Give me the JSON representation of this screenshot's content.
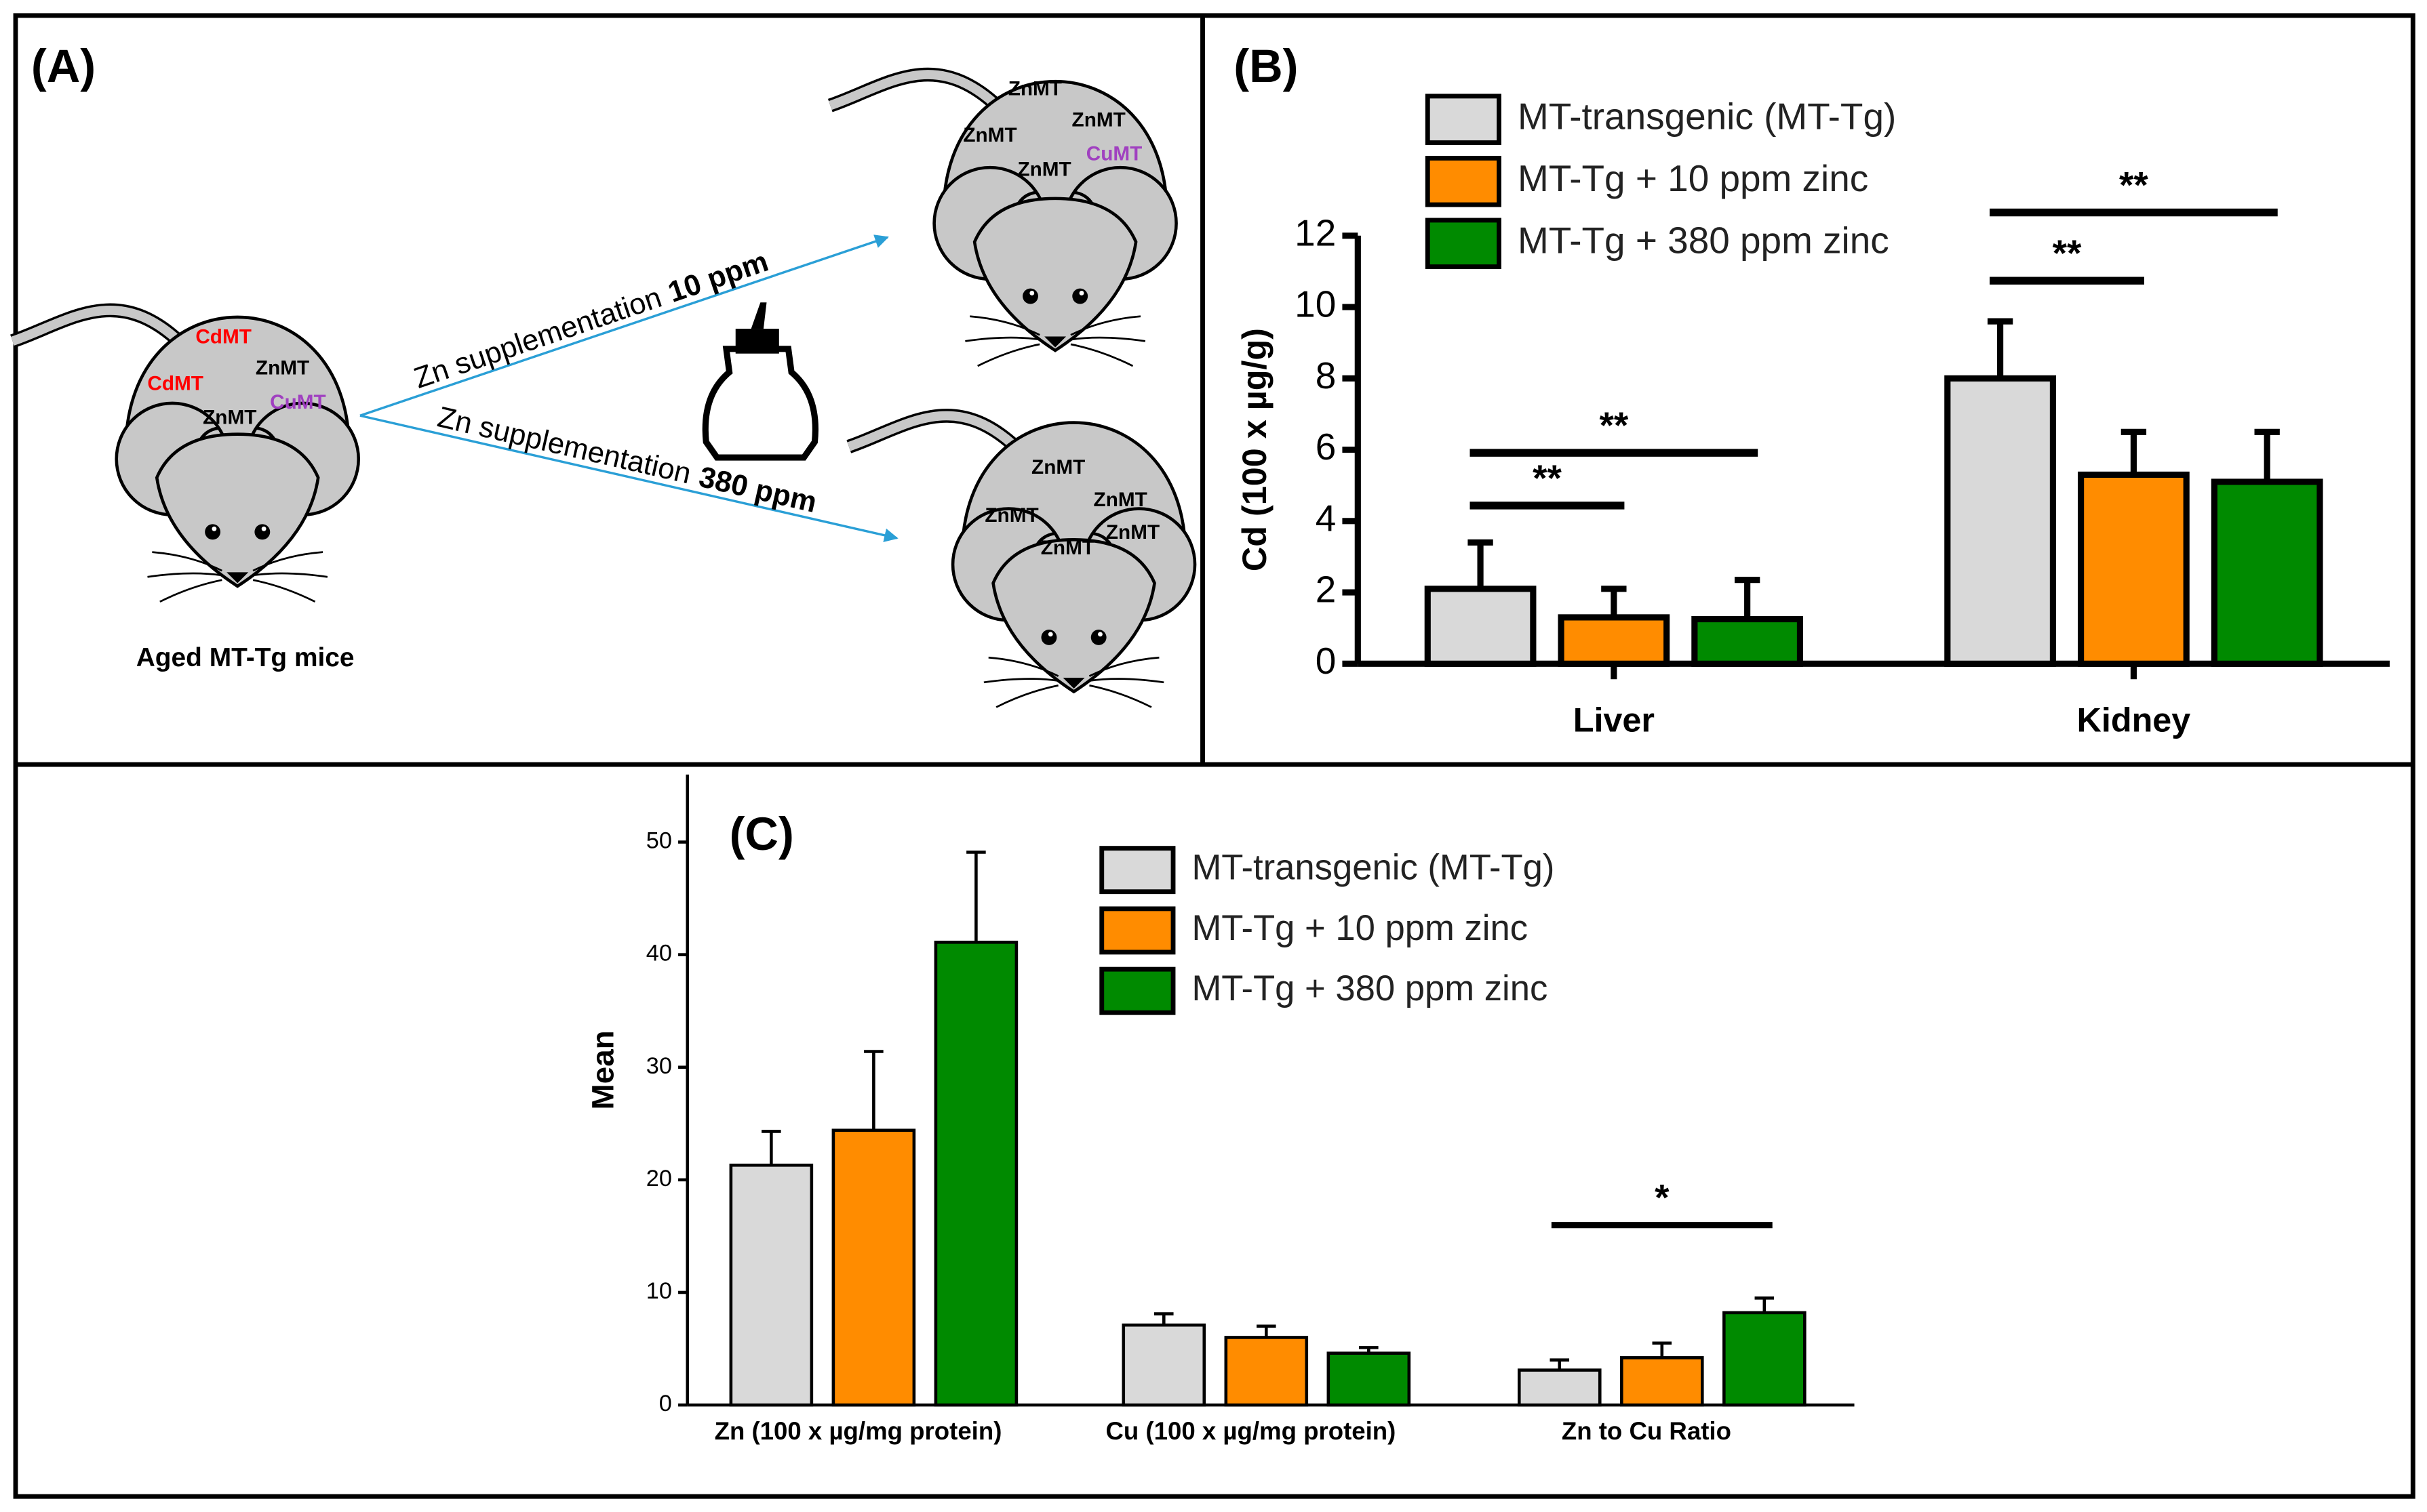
{
  "panel_a": {
    "label": "(A)",
    "mice": [
      {
        "labels": [
          {
            "text": "CdMT",
            "color": "#ff0000"
          },
          {
            "text": "CdMT",
            "color": "#ff0000"
          },
          {
            "text": "ZnMT",
            "color": "#000000"
          },
          {
            "text": "ZnMT",
            "color": "#000000"
          },
          {
            "text": "CuMT",
            "color": "#a040c0"
          }
        ],
        "caption": "Aged MT-Tg mice"
      },
      {
        "labels": [
          {
            "text": "ZnMT",
            "color": "#000000"
          },
          {
            "text": "ZnMT",
            "color": "#000000"
          },
          {
            "text": "ZnMT",
            "color": "#000000"
          },
          {
            "text": "CuMT",
            "color": "#a040c0"
          },
          {
            "text": "ZnMT",
            "color": "#000000"
          }
        ]
      },
      {
        "labels": [
          {
            "text": "ZnMT",
            "color": "#000000"
          },
          {
            "text": "ZnMT",
            "color": "#000000"
          },
          {
            "text": "ZnMT",
            "color": "#000000"
          },
          {
            "text": "ZnMT",
            "color": "#000000"
          },
          {
            "text": "ZnMT",
            "color": "#000000"
          }
        ]
      }
    ],
    "arrows": [
      {
        "text": "Zn supplementation",
        "dose": "10 ppm"
      },
      {
        "text": "Zn supplementation",
        "dose": "380 ppm"
      }
    ]
  },
  "chart_data": [
    {
      "type": "bar",
      "label": "(B)",
      "ylabel": "Cd (100 x µg/g)",
      "categories": [
        "Liver",
        "Kidney"
      ],
      "series": [
        {
          "name": "MT-transgenic (MT-Tg)",
          "color": "#d9d9d9",
          "values": [
            2.1,
            8.0
          ],
          "errors": [
            1.3,
            1.6
          ]
        },
        {
          "name": "MT-Tg + 10 ppm zinc",
          "color": "#ff8c00",
          "values": [
            1.3,
            5.3
          ],
          "errors": [
            0.8,
            1.2
          ]
        },
        {
          "name": "MT-Tg + 380 ppm zinc",
          "color": "#008a00",
          "values": [
            1.25,
            5.1
          ],
          "errors": [
            1.1,
            1.4
          ]
        }
      ],
      "ylim": [
        0,
        12
      ],
      "yticks": [
        0,
        2,
        4,
        6,
        8,
        10,
        12
      ],
      "annotations": [
        "**",
        "**",
        "**",
        "**"
      ]
    },
    {
      "type": "bar",
      "label": "(C)",
      "ylabel": "Mean",
      "categories": [
        "Zn (100 x µg/mg protein)",
        "Cu (100 x µg/mg protein)",
        "Zn to Cu Ratio"
      ],
      "series": [
        {
          "name": "MT-transgenic (MT-Tg)",
          "color": "#d9d9d9",
          "values": [
            21.3,
            7.1,
            3.1
          ],
          "errors": [
            3.0,
            1.0,
            0.9
          ]
        },
        {
          "name": "MT-Tg + 10 ppm zinc",
          "color": "#ff8c00",
          "values": [
            24.4,
            6.0,
            4.2
          ],
          "errors": [
            7.0,
            1.0,
            1.3
          ]
        },
        {
          "name": "MT-Tg + 380 ppm zinc",
          "color": "#008a00",
          "values": [
            41.1,
            4.6,
            8.2
          ],
          "errors": [
            8.0,
            0.5,
            1.3
          ]
        }
      ],
      "ylim": [
        0,
        56
      ],
      "yticks": [
        0,
        10,
        20,
        30,
        40,
        50
      ],
      "annotations": [
        "*"
      ]
    }
  ]
}
